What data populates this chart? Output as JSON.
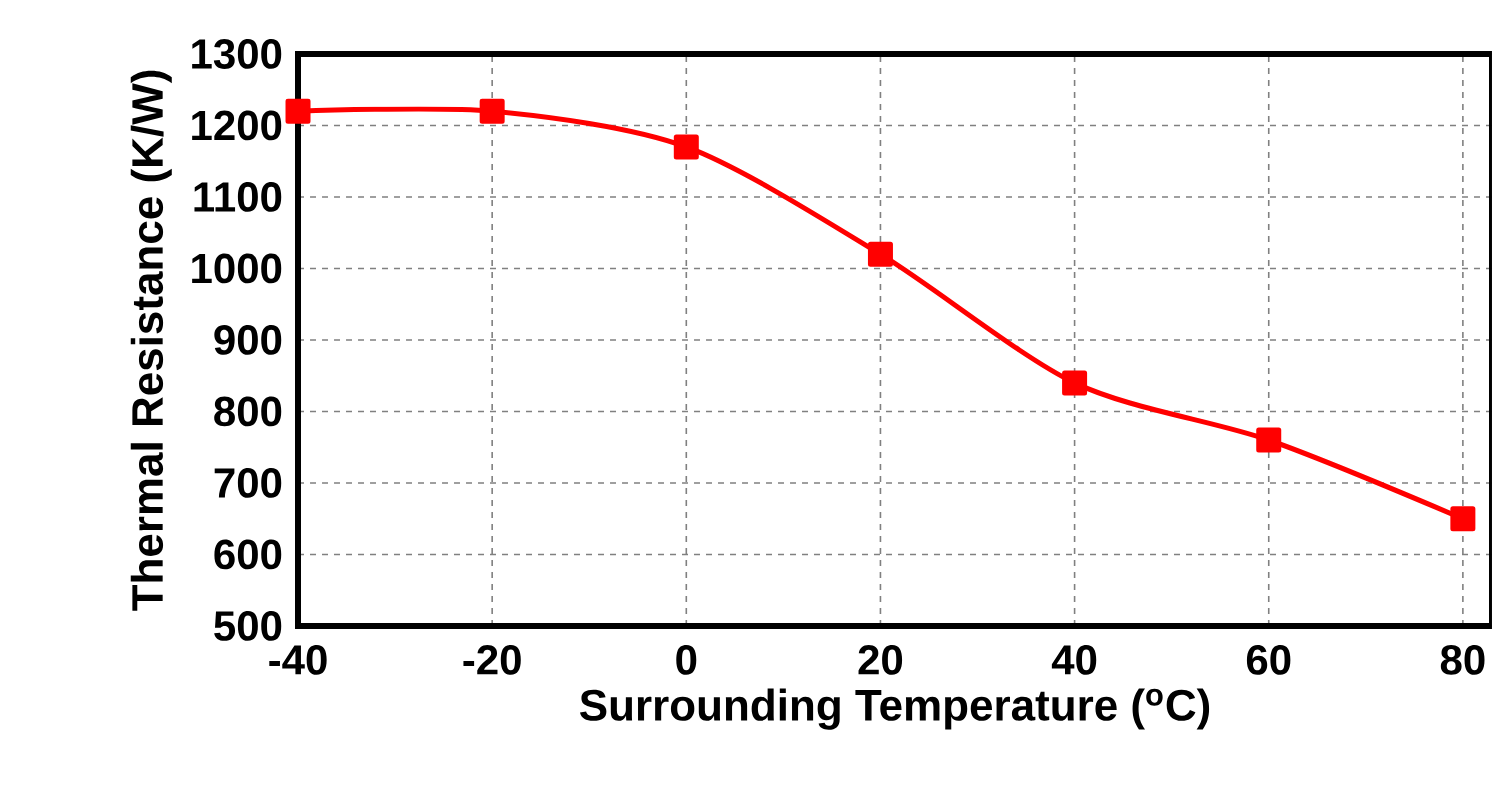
{
  "chart_data": {
    "type": "line",
    "xlabel": "Surrounding Temperature ($^{o}$C)",
    "ylabel": "Thermal Resistance (K/W)",
    "x": [
      -40,
      -20,
      0,
      20,
      40,
      60,
      80
    ],
    "series": [
      {
        "color": "#ff0000",
        "values": [
          1220,
          1220,
          1170,
          1020,
          840,
          760,
          650
        ]
      }
    ],
    "xlim": [
      -40,
      83
    ],
    "xticks": [
      -40,
      -20,
      0,
      20,
      40,
      60,
      80
    ],
    "ylim": [
      500,
      1300
    ],
    "yticks": [
      500,
      600,
      700,
      800,
      900,
      1000,
      1100,
      1200,
      1300
    ],
    "grid": true,
    "marker": "square",
    "line_style": "solid"
  }
}
